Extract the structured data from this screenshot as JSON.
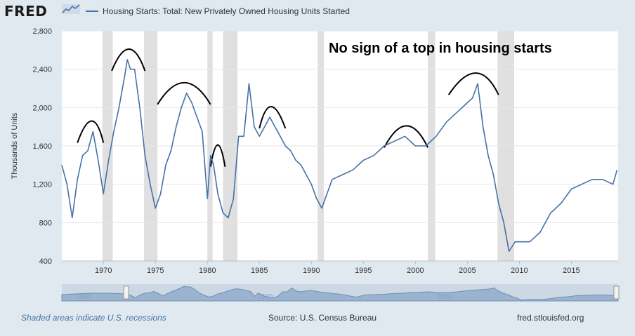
{
  "app": {
    "logo": "FRED",
    "logo_icon": "sparkline-icon"
  },
  "footer": {
    "recessions_note": "Shaded areas indicate U.S. recessions",
    "source": "Source: U.S. Census Bureau",
    "site": "fred.stlouisfed.org"
  },
  "navigator": {
    "labels": [
      "1960",
      "1980",
      "2000"
    ]
  },
  "chart_data": {
    "type": "line",
    "title": "Housing Starts: Total: New Privately Owned Housing Units Started",
    "annotation": "No sign of a top in housing starts",
    "xlabel": "",
    "ylabel": "Thousands of Units",
    "xlim": [
      1966,
      2019.5
    ],
    "ylim": [
      400,
      2800
    ],
    "x_ticks": [
      1970,
      1975,
      1980,
      1985,
      1990,
      1995,
      2000,
      2005,
      2010,
      2015
    ],
    "y_ticks": [
      400,
      800,
      1200,
      1600,
      2000,
      2400,
      2800
    ],
    "series_color": "#4572a7",
    "recessions": [
      [
        1969.9,
        1970.9
      ],
      [
        1973.9,
        1975.2
      ],
      [
        1980.0,
        1980.5
      ],
      [
        1981.5,
        1982.9
      ],
      [
        1990.6,
        1991.2
      ],
      [
        2001.2,
        2001.9
      ],
      [
        2007.9,
        2009.5
      ]
    ],
    "peak_arcs": [
      [
        1967.5,
        1969.0,
        1970.0
      ],
      [
        1970.8,
        1972.5,
        1974.0
      ],
      [
        1975.2,
        1977.8,
        1980.3
      ],
      [
        1980.3,
        1981.0,
        1981.7
      ],
      [
        1985.0,
        1986.0,
        1987.5
      ],
      [
        1997.0,
        1999.2,
        2001.2
      ],
      [
        2003.2,
        2006.0,
        2008.0
      ]
    ],
    "series": [
      {
        "name": "Housing Starts: Total: New Privately Owned Housing Units Started",
        "x": [
          1966.0,
          1966.5,
          1967.0,
          1967.5,
          1968.0,
          1968.5,
          1969.0,
          1969.5,
          1970.0,
          1970.5,
          1971.0,
          1971.5,
          1972.0,
          1972.3,
          1972.6,
          1973.0,
          1973.5,
          1974.0,
          1974.5,
          1975.0,
          1975.5,
          1976.0,
          1976.5,
          1977.0,
          1977.5,
          1978.0,
          1978.5,
          1979.0,
          1979.5,
          1980.0,
          1980.3,
          1980.6,
          1981.0,
          1981.5,
          1982.0,
          1982.5,
          1983.0,
          1983.5,
          1984.0,
          1984.5,
          1985.0,
          1985.5,
          1986.0,
          1986.5,
          1987.0,
          1987.5,
          1988.0,
          1988.5,
          1989.0,
          1989.5,
          1990.0,
          1990.5,
          1991.0,
          1991.5,
          1992.0,
          1993.0,
          1994.0,
          1995.0,
          1996.0,
          1997.0,
          1998.0,
          1999.0,
          2000.0,
          2001.0,
          2002.0,
          2003.0,
          2004.0,
          2005.0,
          2005.5,
          2006.0,
          2006.5,
          2007.0,
          2007.5,
          2008.0,
          2008.5,
          2009.0,
          2009.3,
          2009.6,
          2010.0,
          2011.0,
          2012.0,
          2013.0,
          2014.0,
          2015.0,
          2016.0,
          2017.0,
          2018.0,
          2019.0,
          2019.4
        ],
        "values": [
          1400,
          1200,
          850,
          1250,
          1500,
          1550,
          1750,
          1450,
          1100,
          1450,
          1750,
          2000,
          2300,
          2500,
          2400,
          2400,
          2000,
          1500,
          1200,
          950,
          1100,
          1400,
          1550,
          1800,
          2000,
          2150,
          2050,
          1900,
          1750,
          1050,
          1500,
          1400,
          1100,
          900,
          850,
          1050,
          1700,
          1700,
          2250,
          1800,
          1700,
          1800,
          1900,
          1800,
          1700,
          1600,
          1550,
          1450,
          1400,
          1300,
          1200,
          1050,
          950,
          1100,
          1250,
          1300,
          1350,
          1450,
          1500,
          1600,
          1650,
          1700,
          1600,
          1600,
          1700,
          1850,
          1950,
          2050,
          2100,
          2250,
          1800,
          1500,
          1300,
          1000,
          800,
          500,
          550,
          600,
          600,
          600,
          700,
          900,
          1000,
          1150,
          1200,
          1250,
          1250,
          1200,
          1350
        ]
      }
    ]
  }
}
